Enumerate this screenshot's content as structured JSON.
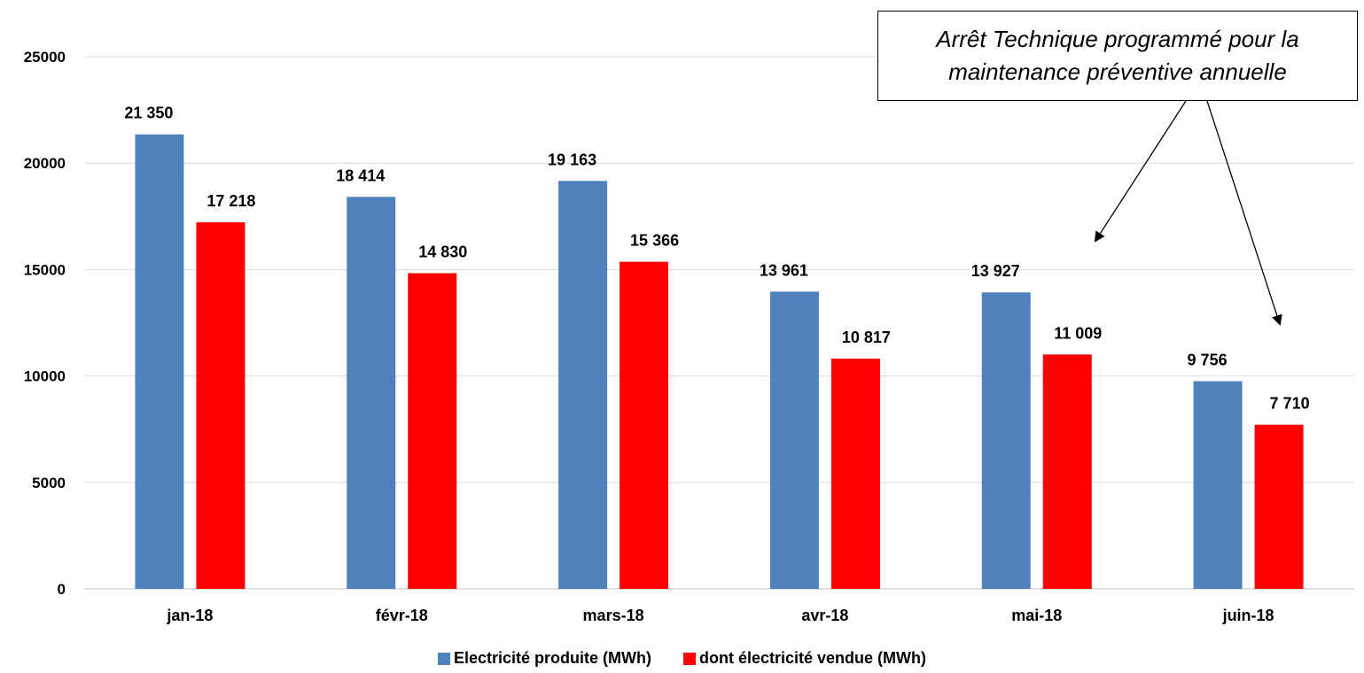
{
  "chart_data": {
    "type": "bar",
    "categories": [
      "jan-18",
      "févr-18",
      "mars-18",
      "avr-18",
      "mai-18",
      "juin-18"
    ],
    "series": [
      {
        "name": "Electricité produite (MWh)",
        "color": "#4f81bd",
        "values": [
          21350,
          18414,
          19163,
          13961,
          13927,
          9756
        ],
        "labels": [
          "21 350",
          "18 414",
          "19 163",
          "13 961",
          "13 927",
          "9 756"
        ]
      },
      {
        "name": "dont électricité vendue (MWh)",
        "color": "#ff0000",
        "values": [
          17218,
          14830,
          15366,
          10817,
          11009,
          7710
        ],
        "labels": [
          "17 218",
          "14 830",
          "15 366",
          "10 817",
          "11 009",
          "7 710"
        ]
      }
    ],
    "yticks": [
      "0",
      "5000",
      "10000",
      "15000",
      "20000",
      "25000"
    ],
    "ylim": [
      0,
      25000
    ],
    "grid": true,
    "legend": "bottom",
    "annotation": {
      "line1": "Arrêt Technique programmé pour la",
      "line2": "maintenance préventive annuelle",
      "targets": [
        "mai-18",
        "juin-18"
      ]
    }
  }
}
